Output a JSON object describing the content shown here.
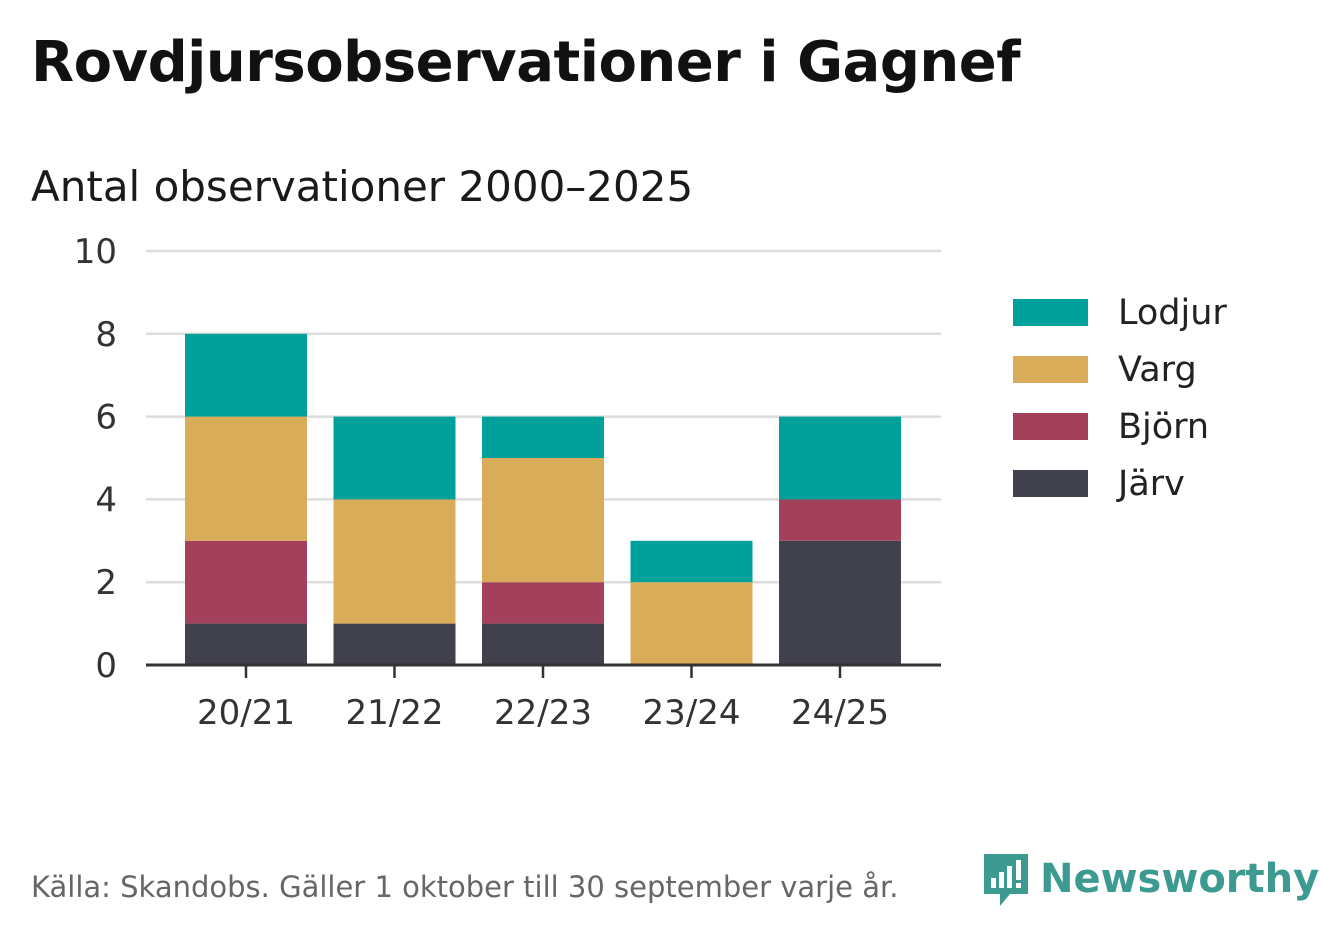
{
  "title": "Rovdjursobservationer i Gagnef",
  "subtitle": "Antal observationer 2000–2025",
  "footer": "Källa: Skandobs. Gäller 1 oktober till 30 september varje år.",
  "brand": {
    "name": "Newsworthy",
    "icon": "newsworthy-logo-icon",
    "color": "#3d9a91"
  },
  "colors": {
    "Lodjur": "#00a19a",
    "Varg": "#d9ac59",
    "Björn": "#a3405c",
    "Järv": "#41404d",
    "grid": "#dddddd",
    "axis": "#333333"
  },
  "legend": [
    {
      "label": "Lodjur",
      "color": "#00a19a"
    },
    {
      "label": "Varg",
      "color": "#d9ac59"
    },
    {
      "label": "Björn",
      "color": "#a3405c"
    },
    {
      "label": "Järv",
      "color": "#41404d"
    }
  ],
  "chart_data": {
    "type": "bar",
    "stacked": true,
    "categories": [
      "20/21",
      "21/22",
      "22/23",
      "23/24",
      "24/25"
    ],
    "series": [
      {
        "name": "Järv",
        "values": [
          1,
          1,
          1,
          0,
          3
        ]
      },
      {
        "name": "Björn",
        "values": [
          2,
          0,
          1,
          0,
          1
        ]
      },
      {
        "name": "Varg",
        "values": [
          3,
          3,
          3,
          2,
          0
        ]
      },
      {
        "name": "Lodjur",
        "values": [
          2,
          2,
          1,
          1,
          2
        ]
      }
    ],
    "ylim": [
      0,
      10
    ],
    "yticks": [
      0,
      2,
      4,
      6,
      8,
      10
    ],
    "grid": true,
    "legend_position": "right"
  }
}
